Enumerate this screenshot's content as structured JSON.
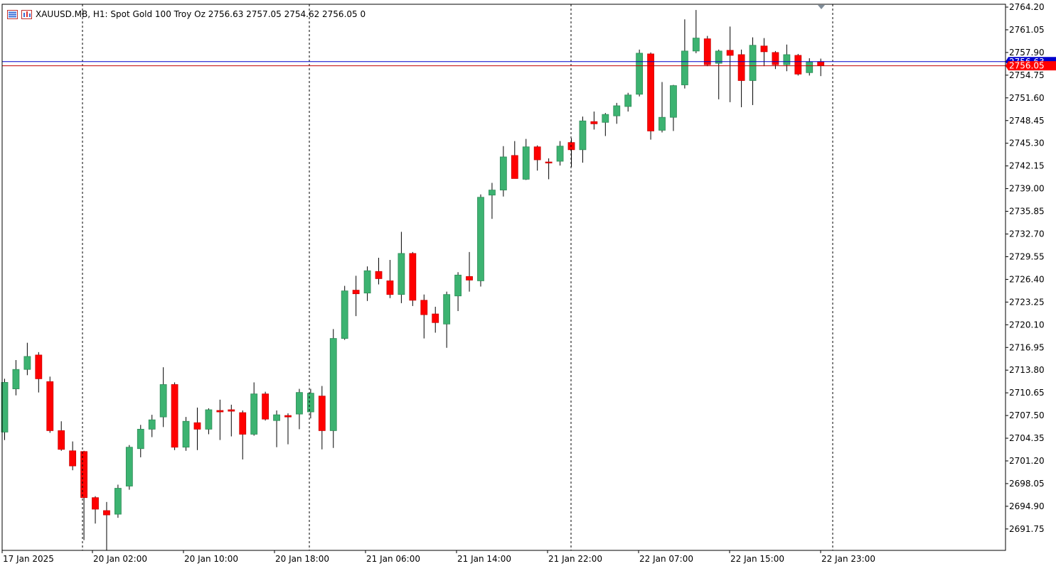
{
  "header": {
    "symbol": "XAUUSD.MB, H1:",
    "description": "Spot Gold 100 Troy Oz",
    "ohlc": "2756.63 2757.05 2754.62 2756.05",
    "ticks": "0"
  },
  "icons": [
    "bars-menu-icon",
    "chart-window-icon"
  ],
  "colors": {
    "bull_fill": "#3cb371",
    "bull_stroke": "#2e8b57",
    "bear_fill": "#ff0000",
    "bear_stroke": "#cc0000",
    "wick": "#000000",
    "bid_line": "#c00000",
    "ask_line": "#0000cc",
    "price_label_bid": "#ff0000",
    "price_label_ask": "#0000cc",
    "separator": "#000000",
    "frame": "#000000",
    "text": "#000000"
  },
  "chart_data": {
    "type": "candlestick",
    "timeframe": "H1",
    "ylim": [
      2689.5,
      2764.2
    ],
    "grid": false,
    "y_ticks": [
      "2764.20",
      "2761.05",
      "2757.90",
      "2754.75",
      "2751.60",
      "2748.45",
      "2745.30",
      "2742.15",
      "2739.00",
      "2735.85",
      "2732.70",
      "2729.55",
      "2726.40",
      "2723.25",
      "2720.10",
      "2716.95",
      "2713.80",
      "2710.65",
      "2707.50",
      "2704.35",
      "2701.20",
      "2698.05",
      "2694.90",
      "2691.75"
    ],
    "x_labels": [
      "17 Jan 2025",
      "20 Jan 02:00",
      "20 Jan 10:00",
      "20 Jan 18:00",
      "21 Jan 06:00",
      "21 Jan 14:00",
      "21 Jan 22:00",
      "22 Jan 07:00",
      "22 Jan 15:00",
      "22 Jan 23:00"
    ],
    "bid_price": "2756.05",
    "ask_price": "2756.63",
    "candles": [
      {
        "o": 2705.2,
        "h": 2712.6,
        "l": 2704.1,
        "c": 2712.1
      },
      {
        "o": 2711.2,
        "h": 2715.2,
        "l": 2710.3,
        "c": 2713.9
      },
      {
        "o": 2713.9,
        "h": 2717.6,
        "l": 2713.1,
        "c": 2715.7
      },
      {
        "o": 2715.9,
        "h": 2716.3,
        "l": 2710.7,
        "c": 2712.6
      },
      {
        "o": 2712.2,
        "h": 2712.9,
        "l": 2705.1,
        "c": 2705.4
      },
      {
        "o": 2705.4,
        "h": 2706.7,
        "l": 2702.6,
        "c": 2702.8
      },
      {
        "o": 2702.6,
        "h": 2703.9,
        "l": 2699.9,
        "c": 2700.5
      },
      {
        "o": 2702.5,
        "h": 2702.6,
        "l": 2690.2,
        "c": 2696.1
      },
      {
        "o": 2696.1,
        "h": 2696.3,
        "l": 2692.5,
        "c": 2694.5
      },
      {
        "o": 2694.3,
        "h": 2695.5,
        "l": 2688.8,
        "c": 2693.7
      },
      {
        "o": 2693.8,
        "h": 2697.9,
        "l": 2693.3,
        "c": 2697.4
      },
      {
        "o": 2697.7,
        "h": 2703.4,
        "l": 2697.2,
        "c": 2703.1
      },
      {
        "o": 2702.9,
        "h": 2706.2,
        "l": 2701.7,
        "c": 2705.6
      },
      {
        "o": 2705.6,
        "h": 2707.6,
        "l": 2704.5,
        "c": 2706.9
      },
      {
        "o": 2707.3,
        "h": 2714.2,
        "l": 2705.9,
        "c": 2711.8
      },
      {
        "o": 2711.8,
        "h": 2712.1,
        "l": 2702.7,
        "c": 2703.1
      },
      {
        "o": 2703.1,
        "h": 2707.3,
        "l": 2702.6,
        "c": 2706.7
      },
      {
        "o": 2706.5,
        "h": 2708.6,
        "l": 2702.7,
        "c": 2705.6
      },
      {
        "o": 2705.6,
        "h": 2708.5,
        "l": 2704.9,
        "c": 2708.3
      },
      {
        "o": 2708.2,
        "h": 2709.7,
        "l": 2704.1,
        "c": 2708.0
      },
      {
        "o": 2708.3,
        "h": 2709.0,
        "l": 2704.6,
        "c": 2708.1
      },
      {
        "o": 2707.9,
        "h": 2708.2,
        "l": 2701.4,
        "c": 2704.9
      },
      {
        "o": 2704.9,
        "h": 2712.1,
        "l": 2704.7,
        "c": 2710.5
      },
      {
        "o": 2710.5,
        "h": 2710.8,
        "l": 2706.8,
        "c": 2707.0
      },
      {
        "o": 2706.8,
        "h": 2708.2,
        "l": 2703.1,
        "c": 2707.6
      },
      {
        "o": 2707.5,
        "h": 2707.8,
        "l": 2703.5,
        "c": 2707.3
      },
      {
        "o": 2707.7,
        "h": 2711.2,
        "l": 2705.6,
        "c": 2710.7
      },
      {
        "o": 2708.0,
        "h": 2711.2,
        "l": 2707.1,
        "c": 2710.6
      },
      {
        "o": 2710.2,
        "h": 2711.6,
        "l": 2702.8,
        "c": 2705.4
      },
      {
        "o": 2705.4,
        "h": 2719.5,
        "l": 2703.0,
        "c": 2718.2
      },
      {
        "o": 2718.2,
        "h": 2725.5,
        "l": 2718.0,
        "c": 2724.8
      },
      {
        "o": 2724.9,
        "h": 2726.9,
        "l": 2721.3,
        "c": 2724.4
      },
      {
        "o": 2724.5,
        "h": 2728.2,
        "l": 2723.4,
        "c": 2727.6
      },
      {
        "o": 2727.5,
        "h": 2729.4,
        "l": 2725.7,
        "c": 2726.5
      },
      {
        "o": 2726.2,
        "h": 2729.1,
        "l": 2723.8,
        "c": 2724.3
      },
      {
        "o": 2724.3,
        "h": 2733.0,
        "l": 2723.1,
        "c": 2730.0
      },
      {
        "o": 2730.0,
        "h": 2730.2,
        "l": 2722.7,
        "c": 2723.5
      },
      {
        "o": 2723.5,
        "h": 2724.3,
        "l": 2718.2,
        "c": 2721.5
      },
      {
        "o": 2721.6,
        "h": 2722.6,
        "l": 2719.0,
        "c": 2720.4
      },
      {
        "o": 2720.2,
        "h": 2724.7,
        "l": 2716.9,
        "c": 2724.3
      },
      {
        "o": 2724.1,
        "h": 2727.4,
        "l": 2722.0,
        "c": 2727.0
      },
      {
        "o": 2726.8,
        "h": 2730.2,
        "l": 2724.7,
        "c": 2726.3
      },
      {
        "o": 2726.2,
        "h": 2738.2,
        "l": 2725.4,
        "c": 2737.8
      },
      {
        "o": 2738.1,
        "h": 2739.8,
        "l": 2734.8,
        "c": 2738.8
      },
      {
        "o": 2738.8,
        "h": 2744.9,
        "l": 2737.9,
        "c": 2743.4
      },
      {
        "o": 2743.6,
        "h": 2745.6,
        "l": 2740.4,
        "c": 2740.4
      },
      {
        "o": 2740.3,
        "h": 2745.9,
        "l": 2740.2,
        "c": 2744.8
      },
      {
        "o": 2744.8,
        "h": 2745.0,
        "l": 2741.5,
        "c": 2743.0
      },
      {
        "o": 2742.7,
        "h": 2743.2,
        "l": 2740.3,
        "c": 2742.6
      },
      {
        "o": 2742.8,
        "h": 2745.6,
        "l": 2742.2,
        "c": 2744.9
      },
      {
        "o": 2745.4,
        "h": 2746.0,
        "l": 2742.0,
        "c": 2744.4
      },
      {
        "o": 2744.4,
        "h": 2749.0,
        "l": 2742.6,
        "c": 2748.4
      },
      {
        "o": 2748.3,
        "h": 2749.7,
        "l": 2747.2,
        "c": 2748.0
      },
      {
        "o": 2748.2,
        "h": 2749.5,
        "l": 2746.3,
        "c": 2749.3
      },
      {
        "o": 2749.1,
        "h": 2750.9,
        "l": 2748.0,
        "c": 2750.5
      },
      {
        "o": 2750.4,
        "h": 2752.3,
        "l": 2749.7,
        "c": 2752.0
      },
      {
        "o": 2752.1,
        "h": 2758.3,
        "l": 2751.8,
        "c": 2757.8
      },
      {
        "o": 2757.7,
        "h": 2757.9,
        "l": 2745.8,
        "c": 2747.0
      },
      {
        "o": 2747.1,
        "h": 2753.8,
        "l": 2746.8,
        "c": 2748.9
      },
      {
        "o": 2748.9,
        "h": 2753.4,
        "l": 2747.0,
        "c": 2753.3
      },
      {
        "o": 2753.4,
        "h": 2762.5,
        "l": 2752.9,
        "c": 2758.1
      },
      {
        "o": 2758.1,
        "h": 2763.8,
        "l": 2757.8,
        "c": 2759.9
      },
      {
        "o": 2759.8,
        "h": 2760.2,
        "l": 2756.0,
        "c": 2756.2
      },
      {
        "o": 2756.4,
        "h": 2758.3,
        "l": 2751.4,
        "c": 2758.1
      },
      {
        "o": 2758.2,
        "h": 2761.5,
        "l": 2751.0,
        "c": 2757.5
      },
      {
        "o": 2757.6,
        "h": 2758.3,
        "l": 2750.3,
        "c": 2754.0
      },
      {
        "o": 2754.0,
        "h": 2760.0,
        "l": 2750.6,
        "c": 2758.9
      },
      {
        "o": 2758.8,
        "h": 2759.9,
        "l": 2756.0,
        "c": 2758.0
      },
      {
        "o": 2757.9,
        "h": 2758.1,
        "l": 2755.6,
        "c": 2756.2
      },
      {
        "o": 2756.2,
        "h": 2759.0,
        "l": 2755.3,
        "c": 2757.6
      },
      {
        "o": 2757.5,
        "h": 2757.7,
        "l": 2754.7,
        "c": 2754.9
      },
      {
        "o": 2755.1,
        "h": 2757.1,
        "l": 2754.7,
        "c": 2756.6
      },
      {
        "o": 2756.63,
        "h": 2757.05,
        "l": 2754.62,
        "c": 2756.05
      }
    ]
  }
}
